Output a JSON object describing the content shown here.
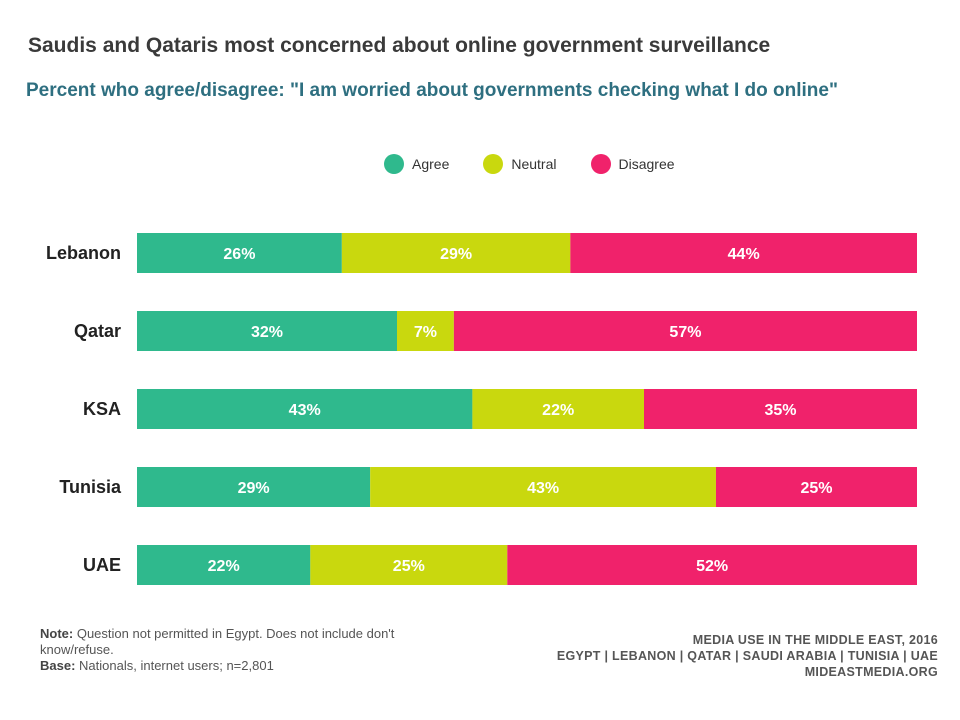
{
  "colors": {
    "agree": "#2fb98d",
    "neutral": "#c9d80e",
    "disagree": "#f0226b"
  },
  "chart_data": {
    "type": "bar",
    "orientation": "horizontal",
    "stacked": true,
    "title": "Saudis and Qataris most concerned about online government surveillance",
    "subtitle": "Percent who agree/disagree: \"I am worried about governments checking what I do online\"",
    "categories": [
      "Lebanon",
      "Qatar",
      "KSA",
      "Tunisia",
      "UAE"
    ],
    "series": [
      {
        "name": "Agree",
        "color_key": "agree",
        "values": [
          26,
          32,
          43,
          29,
          22
        ],
        "labels": [
          "26%",
          "32%",
          "43%",
          "29%",
          "22%"
        ]
      },
      {
        "name": "Neutral",
        "color_key": "neutral",
        "values": [
          29,
          7,
          22,
          43,
          25
        ],
        "labels": [
          "29%",
          "7%",
          "22%",
          "43%",
          "25%"
        ]
      },
      {
        "name": "Disagree",
        "color_key": "disagree",
        "values": [
          44,
          57,
          35,
          25,
          52
        ],
        "labels": [
          "44%",
          "57%",
          "35%",
          "25%",
          "52%"
        ]
      }
    ],
    "legend": "top-center",
    "grid": false
  },
  "footer": {
    "note_label": "Note:",
    "note_text": "Question not permitted in Egypt. Does not include don't know/refuse.",
    "base_label": "Base:",
    "base_text": "Nationals, internet users; n=2,801",
    "source_line1": "MEDIA USE IN THE MIDDLE EAST, 2016",
    "source_line2": "EGYPT | LEBANON | QATAR | SAUDI ARABIA | TUNISIA | UAE",
    "source_line3": "MIDEASTMEDIA.ORG"
  }
}
